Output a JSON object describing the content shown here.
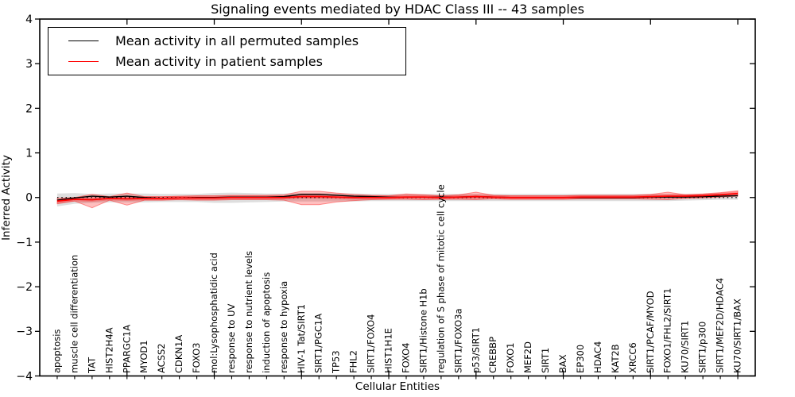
{
  "title": "Signaling events mediated by HDAC Class III -- 43 samples",
  "legend": {
    "items": [
      {
        "label": "Mean activity in all permuted samples",
        "color": "#000000"
      },
      {
        "label": "Mean activity in patient samples",
        "color": "#ff0000"
      }
    ]
  },
  "axes": {
    "ylabel": "Inferred Activity",
    "xlabel": "Cellular Entities"
  },
  "chart_data": {
    "type": "line",
    "title": "Signaling events mediated by HDAC Class III -- 43 samples",
    "xlabel": "Cellular Entities",
    "ylabel": "Inferred Activity",
    "ylim": [
      -4,
      4
    ],
    "grid": false,
    "legend_position": "upper left",
    "zero_line": {
      "style": "dotted",
      "color": "#000000",
      "y": 0
    },
    "yticks": [
      {
        "v": 4,
        "label": "4"
      },
      {
        "v": 3,
        "label": "3"
      },
      {
        "v": 2,
        "label": "2"
      },
      {
        "v": 1,
        "label": "1"
      },
      {
        "v": 0,
        "label": "0"
      },
      {
        "v": -1,
        "label": "−1"
      },
      {
        "v": -2,
        "label": "−2"
      },
      {
        "v": -3,
        "label": "−3"
      },
      {
        "v": -4,
        "label": "−4"
      }
    ],
    "x_major_tick_every": 5,
    "categories": [
      "apoptosis",
      "muscle cell differentiation",
      "TAT",
      "HIST2H4A",
      "PPARGC1A",
      "MYOD1",
      "ACSS2",
      "CDKN1A",
      "FOXO3",
      "mol:Lysophosphatidic acid",
      "response to UV",
      "response to nutrient levels",
      "induction of apoptosis",
      "response to hypoxia",
      "HIV-1 Tat/SIRT1",
      "SIRT1/PGC1A",
      "TP53",
      "FHL2",
      "SIRT1/FOXO4",
      "HIST1H1E",
      "FOXO4",
      "SIRT1/Histone H1b",
      "regulation of S phase of mitotic cell cycle",
      "SIRT1/FOXO3a",
      "p53/SIRT1",
      "CREBBP",
      "FOXO1",
      "MEF2D",
      "SIRT1",
      "BAX",
      "EP300",
      "HDAC4",
      "KAT2B",
      "XRCC6",
      "SIRT1/PCAF/MYOD",
      "FOXO1/FHL2/SIRT1",
      "KU70/SIRT1",
      "SIRT1/p300",
      "SIRT1/MEF2D/HDAC4",
      "KU70/SIRT1/BAX"
    ],
    "series": [
      {
        "name": "Mean activity in all permuted samples",
        "color": "#000000",
        "values": [
          -0.06,
          -0.01,
          0.03,
          0.01,
          0.03,
          0.0,
          -0.02,
          -0.01,
          0.0,
          0.0,
          0.01,
          0.01,
          0.01,
          0.02,
          0.07,
          0.07,
          0.05,
          0.03,
          0.02,
          0.01,
          0.01,
          0.01,
          0.01,
          0.01,
          0.02,
          0.01,
          0.0,
          0.0,
          0.0,
          0.0,
          0.0,
          0.0,
          0.0,
          0.0,
          0.01,
          0.01,
          0.01,
          0.02,
          0.03,
          0.04
        ]
      },
      {
        "name": "Mean activity in patient samples",
        "color": "#ff0000",
        "values": [
          -0.08,
          -0.04,
          -0.05,
          -0.02,
          -0.03,
          -0.02,
          -0.02,
          -0.01,
          -0.01,
          -0.01,
          0.0,
          0.0,
          0.0,
          0.0,
          0.02,
          0.02,
          0.01,
          0.0,
          0.0,
          0.0,
          0.01,
          0.01,
          0.0,
          0.01,
          0.02,
          0.01,
          0.0,
          0.0,
          0.0,
          0.0,
          0.01,
          0.01,
          0.01,
          0.01,
          0.02,
          0.03,
          0.03,
          0.04,
          0.06,
          0.09
        ]
      }
    ],
    "bands": [
      {
        "name": "permuted-samples-range",
        "color": "#000000",
        "opacity": 0.13,
        "upper": [
          0.09,
          0.1,
          0.08,
          0.09,
          0.09,
          0.09,
          0.08,
          0.08,
          0.08,
          0.1,
          0.11,
          0.1,
          0.09,
          0.09,
          0.1,
          0.1,
          0.09,
          0.09,
          0.08,
          0.08,
          0.08,
          0.08,
          0.08,
          0.08,
          0.08,
          0.08,
          0.08,
          0.08,
          0.08,
          0.08,
          0.08,
          0.08,
          0.08,
          0.08,
          0.08,
          0.08,
          0.08,
          0.08,
          0.09,
          0.09
        ],
        "lower": [
          -0.2,
          -0.14,
          -0.12,
          -0.11,
          -0.11,
          -0.11,
          -0.1,
          -0.1,
          -0.1,
          -0.12,
          -0.12,
          -0.11,
          -0.1,
          -0.09,
          -0.09,
          -0.09,
          -0.09,
          -0.09,
          -0.08,
          -0.08,
          -0.08,
          -0.08,
          -0.08,
          -0.08,
          -0.08,
          -0.08,
          -0.08,
          -0.08,
          -0.08,
          -0.08,
          -0.08,
          -0.08,
          -0.08,
          -0.08,
          -0.08,
          -0.08,
          -0.07,
          -0.06,
          -0.05,
          -0.05
        ]
      },
      {
        "name": "patient-samples-range",
        "color": "#ff0000",
        "opacity": 0.25,
        "upper": [
          -0.02,
          0.0,
          0.07,
          0.02,
          0.1,
          0.02,
          0.02,
          0.03,
          0.04,
          0.04,
          0.05,
          0.05,
          0.05,
          0.06,
          0.14,
          0.14,
          0.1,
          0.07,
          0.05,
          0.04,
          0.08,
          0.06,
          0.04,
          0.06,
          0.12,
          0.05,
          0.04,
          0.04,
          0.04,
          0.04,
          0.05,
          0.05,
          0.05,
          0.05,
          0.07,
          0.12,
          0.06,
          0.08,
          0.11,
          0.15
        ],
        "lower": [
          -0.14,
          -0.08,
          -0.23,
          -0.06,
          -0.17,
          -0.06,
          -0.06,
          -0.05,
          -0.06,
          -0.06,
          -0.05,
          -0.05,
          -0.05,
          -0.06,
          -0.16,
          -0.16,
          -0.1,
          -0.07,
          -0.05,
          -0.04,
          -0.04,
          -0.05,
          -0.04,
          -0.04,
          -0.05,
          -0.03,
          -0.04,
          -0.04,
          -0.04,
          -0.04,
          -0.03,
          -0.03,
          -0.03,
          -0.03,
          -0.04,
          -0.05,
          -0.02,
          -0.01,
          0.01,
          0.03
        ]
      }
    ]
  }
}
